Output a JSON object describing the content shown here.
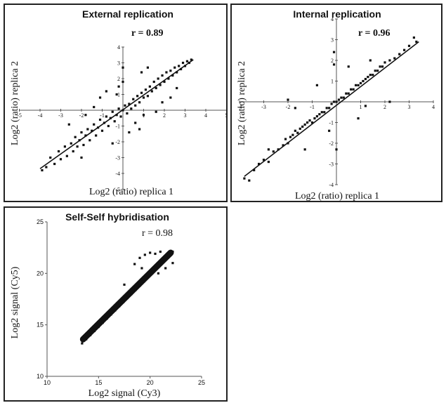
{
  "chart_data": [
    {
      "type": "scatter",
      "title": "External replication",
      "annotation": "r = 0.89",
      "xlabel": "Log2 (ratio) replica 1",
      "ylabel": "Log2 (ratio) replica 2",
      "xlim": [
        -5,
        5
      ],
      "ylim": [
        -5,
        4
      ],
      "x_ticks": [
        -5,
        -4,
        -3,
        -2,
        -1,
        1,
        2,
        3,
        4,
        5
      ],
      "y_ticks": [
        -5,
        -4,
        -3,
        -2,
        -1,
        1,
        2,
        3,
        4
      ],
      "grid": false,
      "trendline": {
        "from": [
          -4.0,
          -3.7
        ],
        "to": [
          3.4,
          3.2
        ]
      },
      "series": [
        {
          "points": [
            [
              -3.9,
              -3.8
            ],
            [
              -3.7,
              -3.6
            ],
            [
              -3.5,
              -3.0
            ],
            [
              -3.3,
              -3.4
            ],
            [
              -3.1,
              -2.6
            ],
            [
              -3.0,
              -3.1
            ],
            [
              -2.8,
              -2.3
            ],
            [
              -2.7,
              -2.9
            ],
            [
              -2.5,
              -2.1
            ],
            [
              -2.4,
              -2.6
            ],
            [
              -2.3,
              -1.7
            ],
            [
              -2.2,
              -2.3
            ],
            [
              -2.1,
              -1.9
            ],
            [
              -2.0,
              -1.4
            ],
            [
              -1.9,
              -2.2
            ],
            [
              -1.8,
              -1.6
            ],
            [
              -1.7,
              -1.2
            ],
            [
              -1.6,
              -1.9
            ],
            [
              -1.5,
              -1.3
            ],
            [
              -1.4,
              -0.9
            ],
            [
              -1.3,
              -1.6
            ],
            [
              -1.2,
              -1.1
            ],
            [
              -1.1,
              -0.6
            ],
            [
              -1.0,
              -1.3
            ],
            [
              -0.9,
              -0.8
            ],
            [
              -0.8,
              -0.4
            ],
            [
              -0.7,
              -1.0
            ],
            [
              -0.6,
              -0.5
            ],
            [
              -0.5,
              -0.1
            ],
            [
              -0.4,
              -0.7
            ],
            [
              -0.3,
              -0.3
            ],
            [
              -0.2,
              0.1
            ],
            [
              -0.1,
              -0.4
            ],
            [
              0.0,
              0.0
            ],
            [
              0.1,
              0.3
            ],
            [
              0.2,
              -0.2
            ],
            [
              0.3,
              0.4
            ],
            [
              0.4,
              0.1
            ],
            [
              0.5,
              0.7
            ],
            [
              0.6,
              0.3
            ],
            [
              0.7,
              0.9
            ],
            [
              0.8,
              0.5
            ],
            [
              0.9,
              1.1
            ],
            [
              1.0,
              0.8
            ],
            [
              1.1,
              1.3
            ],
            [
              1.2,
              0.9
            ],
            [
              1.3,
              1.5
            ],
            [
              1.4,
              1.2
            ],
            [
              1.5,
              1.8
            ],
            [
              1.6,
              1.4
            ],
            [
              1.7,
              2.0
            ],
            [
              1.8,
              1.6
            ],
            [
              1.9,
              2.2
            ],
            [
              2.0,
              1.8
            ],
            [
              2.1,
              2.4
            ],
            [
              2.2,
              2.0
            ],
            [
              2.3,
              2.5
            ],
            [
              2.4,
              2.2
            ],
            [
              2.5,
              2.7
            ],
            [
              2.6,
              2.4
            ],
            [
              2.7,
              2.8
            ],
            [
              2.8,
              2.6
            ],
            [
              2.9,
              3.0
            ],
            [
              3.0,
              2.8
            ],
            [
              3.1,
              3.1
            ],
            [
              3.2,
              3.0
            ],
            [
              3.3,
              3.2
            ],
            [
              0.0,
              2.7
            ],
            [
              0.0,
              1.8
            ],
            [
              -0.2,
              1.5
            ],
            [
              0.3,
              -1.4
            ],
            [
              1.0,
              -0.3
            ],
            [
              -1.4,
              0.2
            ],
            [
              1.6,
              -0.1
            ],
            [
              -0.8,
              1.2
            ],
            [
              2.3,
              0.8
            ],
            [
              -2.6,
              -0.9
            ],
            [
              0.9,
              2.4
            ],
            [
              -0.5,
              -2.1
            ],
            [
              1.9,
              0.5
            ],
            [
              -1.8,
              -0.3
            ],
            [
              0.6,
              -0.8
            ],
            [
              -1.1,
              0.8
            ],
            [
              2.6,
              1.4
            ],
            [
              -2.0,
              -3.0
            ],
            [
              1.2,
              2.7
            ],
            [
              -0.3,
              1.0
            ],
            [
              0.8,
              -1.2
            ]
          ]
        }
      ]
    },
    {
      "type": "scatter",
      "title": "Internal replication",
      "annotation": "r = 0.96",
      "xlabel": "Log2 (ratio) replica 1",
      "ylabel": "Log2 (ratio) replica 2",
      "xlim": [
        -4,
        4
      ],
      "ylim": [
        -4,
        4
      ],
      "x_ticks": [
        -4,
        -3,
        -2,
        -1,
        1,
        2,
        3,
        4
      ],
      "y_ticks": [
        -4,
        -3,
        -2,
        -1,
        1,
        2,
        3,
        4
      ],
      "grid": false,
      "trendline": {
        "from": [
          -3.8,
          -3.6
        ],
        "to": [
          3.4,
          2.9
        ]
      },
      "series": [
        {
          "points": [
            [
              -3.8,
              -3.7
            ],
            [
              -3.6,
              -3.8
            ],
            [
              -3.4,
              -3.3
            ],
            [
              -3.2,
              -3.0
            ],
            [
              -3.0,
              -2.8
            ],
            [
              -2.8,
              -2.9
            ],
            [
              -2.6,
              -2.4
            ],
            [
              -2.4,
              -2.3
            ],
            [
              -2.2,
              -2.1
            ],
            [
              -2.1,
              -1.8
            ],
            [
              -2.0,
              -2.0
            ],
            [
              -1.9,
              -1.7
            ],
            [
              -1.8,
              -1.6
            ],
            [
              -1.7,
              -1.4
            ],
            [
              -1.6,
              -1.5
            ],
            [
              -1.5,
              -1.3
            ],
            [
              -1.4,
              -1.2
            ],
            [
              -1.3,
              -1.1
            ],
            [
              -1.2,
              -1.0
            ],
            [
              -1.1,
              -0.9
            ],
            [
              -1.0,
              -1.0
            ],
            [
              -0.9,
              -0.8
            ],
            [
              -0.8,
              -0.7
            ],
            [
              -0.7,
              -0.6
            ],
            [
              -0.6,
              -0.5
            ],
            [
              -0.5,
              -0.5
            ],
            [
              -0.4,
              -0.3
            ],
            [
              -0.3,
              -0.3
            ],
            [
              -0.2,
              -0.1
            ],
            [
              -0.1,
              0.0
            ],
            [
              0.0,
              0.0
            ],
            [
              0.1,
              0.1
            ],
            [
              0.2,
              0.2
            ],
            [
              0.3,
              0.2
            ],
            [
              0.4,
              0.4
            ],
            [
              0.5,
              0.4
            ],
            [
              0.6,
              0.6
            ],
            [
              0.7,
              0.6
            ],
            [
              0.8,
              0.8
            ],
            [
              0.9,
              0.8
            ],
            [
              1.0,
              0.9
            ],
            [
              1.1,
              1.0
            ],
            [
              1.2,
              1.1
            ],
            [
              1.3,
              1.2
            ],
            [
              1.4,
              1.3
            ],
            [
              1.5,
              1.3
            ],
            [
              1.6,
              1.5
            ],
            [
              1.7,
              1.5
            ],
            [
              1.8,
              1.7
            ],
            [
              1.9,
              1.7
            ],
            [
              2.0,
              1.9
            ],
            [
              2.2,
              2.0
            ],
            [
              2.4,
              2.1
            ],
            [
              2.6,
              2.3
            ],
            [
              2.8,
              2.5
            ],
            [
              3.0,
              2.7
            ],
            [
              3.2,
              3.1
            ],
            [
              3.3,
              2.9
            ],
            [
              -0.1,
              2.4
            ],
            [
              -0.1,
              1.8
            ],
            [
              2.2,
              0.0
            ],
            [
              -1.7,
              -0.3
            ],
            [
              0.0,
              -2.3
            ],
            [
              -0.8,
              0.8
            ],
            [
              0.9,
              -0.8
            ],
            [
              -2.0,
              0.1
            ],
            [
              1.4,
              2.0
            ],
            [
              -1.3,
              -2.3
            ],
            [
              0.5,
              1.7
            ],
            [
              -0.3,
              -1.4
            ],
            [
              1.2,
              -0.2
            ],
            [
              -2.8,
              -2.3
            ]
          ]
        }
      ]
    },
    {
      "type": "scatter",
      "title": "Self-Self hybridisation",
      "annotation": "r = 0.98",
      "xlabel": "Log2 signal (Cy3)",
      "ylabel": "Log2 signal (Cy5)",
      "xlim": [
        10,
        25
      ],
      "ylim": [
        10,
        25
      ],
      "x_ticks": [
        10,
        15,
        20,
        25
      ],
      "y_ticks": [
        10,
        15,
        20,
        25
      ],
      "grid": false,
      "series": [
        {
          "points": [
            [
              13.4,
              13.2
            ],
            [
              13.6,
              13.8
            ],
            [
              13.8,
              13.6
            ],
            [
              14.0,
              14.2
            ],
            [
              14.2,
              14.0
            ],
            [
              14.4,
              14.6
            ],
            [
              14.6,
              14.4
            ],
            [
              14.8,
              15.0
            ],
            [
              15.0,
              14.8
            ],
            [
              15.2,
              15.4
            ],
            [
              15.4,
              15.2
            ],
            [
              15.6,
              15.8
            ],
            [
              15.8,
              15.6
            ],
            [
              16.0,
              16.2
            ],
            [
              16.2,
              16.0
            ],
            [
              16.4,
              16.6
            ],
            [
              16.6,
              16.4
            ],
            [
              16.8,
              17.0
            ],
            [
              17.0,
              16.8
            ],
            [
              17.2,
              17.4
            ],
            [
              17.4,
              17.2
            ],
            [
              17.6,
              17.8
            ],
            [
              17.8,
              17.6
            ],
            [
              18.0,
              18.2
            ],
            [
              18.2,
              18.0
            ],
            [
              18.4,
              18.6
            ],
            [
              18.6,
              18.4
            ],
            [
              18.8,
              19.0
            ],
            [
              19.0,
              18.8
            ],
            [
              19.2,
              19.4
            ],
            [
              19.4,
              19.2
            ],
            [
              19.6,
              19.8
            ],
            [
              19.8,
              19.6
            ],
            [
              20.0,
              20.2
            ],
            [
              20.2,
              20.0
            ],
            [
              20.4,
              20.6
            ],
            [
              20.6,
              20.4
            ],
            [
              20.8,
              21.0
            ],
            [
              21.0,
              20.8
            ],
            [
              21.2,
              21.4
            ],
            [
              21.4,
              21.2
            ],
            [
              21.6,
              21.8
            ],
            [
              21.8,
              21.6
            ],
            [
              22.0,
              22.0
            ],
            [
              22.2,
              22.1
            ],
            [
              19.0,
              21.5
            ],
            [
              19.5,
              21.8
            ],
            [
              20.0,
              22.0
            ],
            [
              20.5,
              21.9
            ],
            [
              21.0,
              22.1
            ],
            [
              18.5,
              20.9
            ],
            [
              19.2,
              20.5
            ],
            [
              20.8,
              20.0
            ],
            [
              21.5,
              20.5
            ],
            [
              22.2,
              21.0
            ],
            [
              17.5,
              18.9
            ]
          ]
        }
      ]
    }
  ]
}
